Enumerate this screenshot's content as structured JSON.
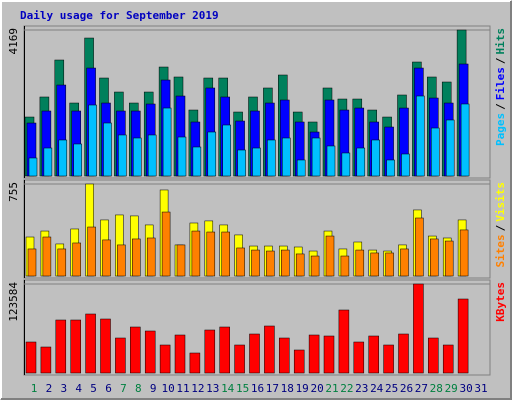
{
  "chart_data": {
    "type": "bar",
    "title": "Daily usage for September 2019",
    "legend_separator": "/",
    "categories": [
      "1",
      "2",
      "3",
      "4",
      "5",
      "6",
      "7",
      "8",
      "9",
      "10",
      "11",
      "12",
      "13",
      "14",
      "15",
      "16",
      "17",
      "18",
      "19",
      "20",
      "21",
      "22",
      "23",
      "24",
      "25",
      "26",
      "27",
      "28",
      "29",
      "30",
      "31"
    ],
    "category_colors": [
      "#008040",
      "#000080",
      "#000080",
      "#000080",
      "#000080",
      "#000080",
      "#008040",
      "#008040",
      "#000080",
      "#000080",
      "#000080",
      "#000080",
      "#000080",
      "#008040",
      "#008040",
      "#000080",
      "#000080",
      "#000080",
      "#000080",
      "#000080",
      "#008040",
      "#008040",
      "#000080",
      "#000080",
      "#000080",
      "#000080",
      "#000080",
      "#008040",
      "#008040",
      "#000080",
      "#000080"
    ],
    "panels": [
      {
        "ylim": [
          0,
          4169
        ],
        "yticks": [
          4169
        ],
        "series": [
          {
            "name": "Hits",
            "color": "#00805c",
            "values": [
              1684,
              2256,
              3312,
              2084,
              3940,
              2798,
              2398,
              2084,
              2398,
              3112,
              2827,
              1884,
              2798,
              2798,
              1827,
              2256,
              2513,
              2884,
              1827,
              1542,
              2513,
              2198,
              2198,
              1884,
              1684,
              2313,
              3255,
              2827,
              2684,
              4169,
              null
            ]
          },
          {
            "name": "Files",
            "color": "#0000ff",
            "values": [
              1513,
              1856,
              2598,
              1856,
              3083,
              2084,
              1856,
              1856,
              2056,
              2741,
              2284,
              1542,
              2513,
              2256,
              1570,
              1856,
              2084,
              2170,
              1542,
              1256,
              2170,
              1884,
              1941,
              1542,
              1399,
              1941,
              3083,
              2227,
              2084,
              3198,
              null
            ]
          },
          {
            "name": "Pages",
            "color": "#00c0ff",
            "values": [
              514,
              799,
              1028,
              914,
              2027,
              1513,
              1171,
              1085,
              1171,
              1941,
              1113,
              828,
              1256,
              1456,
              742,
              799,
              1028,
              1085,
              457,
              1085,
              857,
              657,
              799,
              1028,
              457,
              628,
              2284,
              1370,
              1599,
              2056,
              null
            ]
          }
        ]
      },
      {
        "ylim": [
          0,
          755
        ],
        "yticks": [
          755
        ],
        "series": [
          {
            "name": "Visits",
            "color": "#ffff00",
            "values": [
              320,
              369,
              263,
              386,
              755,
              460,
              501,
              493,
              419,
              706,
              255,
              435,
              452,
              419,
              337,
              246,
              246,
              246,
              238,
              205,
              369,
              222,
              279,
              213,
              205,
              255,
              542,
              328,
              312,
              460,
              null
            ]
          },
          {
            "name": "Sites",
            "color": "#ff8000",
            "values": [
              222,
              320,
              222,
              271,
              402,
              296,
              255,
              304,
              312,
              525,
              255,
              369,
              361,
              361,
              230,
              213,
              205,
              213,
              181,
              164,
              328,
              164,
              213,
              189,
              189,
              222,
              476,
              304,
              287,
              378,
              null
            ]
          }
        ]
      },
      {
        "ylim": [
          0,
          123584
        ],
        "yticks": [
          123584
        ],
        "series": [
          {
            "name": "KBytes",
            "color": "#ff0000",
            "values": [
              43047,
              36104,
              73596,
              73596,
              81927,
              74984,
              48601,
              63876,
              58321,
              38881,
              52767,
              27772,
              59710,
              63876,
              38881,
              54155,
              65264,
              48601,
              31938,
              52767,
              51378,
              87482,
              43047,
              51378,
              38881,
              54155,
              123584,
              48601,
              38881,
              102756,
              null
            ]
          }
        ]
      }
    ]
  }
}
